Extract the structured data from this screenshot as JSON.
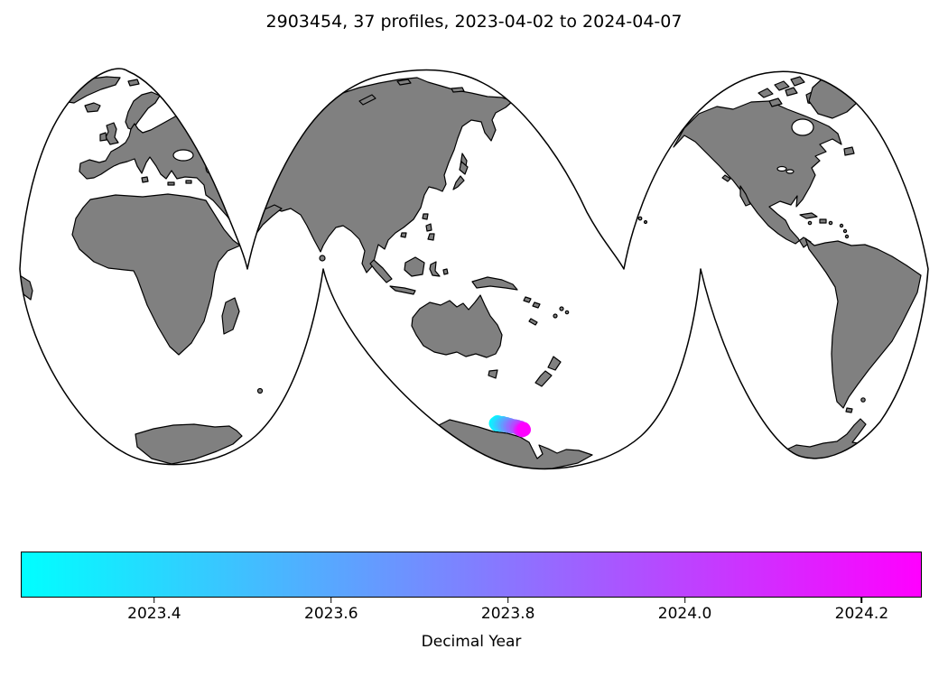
{
  "title": "2903454, 37 profiles, 2023-04-02 to 2024-04-07",
  "theme": {
    "background": "#ffffff",
    "land_color": "#808080",
    "coast_color": "#000000",
    "scatter_cmap_start": "#00ffff",
    "scatter_cmap_end": "#ff00ff"
  },
  "chart_data": {
    "type": "scatter",
    "title": "2903454, 37 profiles, 2023-04-02 to 2024-04-07",
    "float_id": "2903454",
    "profile_count": 37,
    "date_start": "2023-04-02",
    "date_end": "2024-04-07",
    "projection": "interrupted-goode-homolosine-world-map",
    "legend_position": "bottom-colorbar",
    "grid": false,
    "colorbar": {
      "label": "Decimal Year",
      "cmap": "cool",
      "cmap_start_color": "#00ffff",
      "cmap_end_color": "#ff00ff",
      "vmin": 2023.249,
      "vmax": 2024.268,
      "ticks": [
        2023.4,
        2023.6,
        2023.8,
        2024.0,
        2024.2
      ],
      "tick_labels": [
        "2023.4",
        "2023.6",
        "2023.8",
        "2024.0",
        "2024.2"
      ]
    },
    "points": [
      {
        "x": 549.0,
        "y": 469.0,
        "year": 2023.253
      },
      {
        "x": 551.0,
        "y": 467.5,
        "year": 2023.281
      },
      {
        "x": 553.0,
        "y": 469.5,
        "year": 2023.309
      },
      {
        "x": 550.0,
        "y": 470.5,
        "year": 2023.337
      },
      {
        "x": 552.5,
        "y": 468.0,
        "year": 2023.366
      },
      {
        "x": 555.0,
        "y": 469.0,
        "year": 2023.394
      },
      {
        "x": 554.0,
        "y": 471.0,
        "year": 2023.422
      },
      {
        "x": 557.0,
        "y": 468.5,
        "year": 2023.45
      },
      {
        "x": 556.0,
        "y": 470.5,
        "year": 2023.478
      },
      {
        "x": 558.0,
        "y": 469.5,
        "year": 2023.506
      },
      {
        "x": 560.0,
        "y": 470.0,
        "year": 2023.535
      },
      {
        "x": 559.0,
        "y": 471.5,
        "year": 2023.563
      },
      {
        "x": 561.0,
        "y": 469.5,
        "year": 2023.591
      },
      {
        "x": 563.0,
        "y": 470.5,
        "year": 2023.619
      },
      {
        "x": 562.0,
        "y": 472.0,
        "year": 2023.647
      },
      {
        "x": 564.5,
        "y": 470.5,
        "year": 2023.675
      },
      {
        "x": 566.0,
        "y": 471.5,
        "year": 2023.703
      },
      {
        "x": 565.0,
        "y": 472.5,
        "year": 2023.732
      },
      {
        "x": 567.5,
        "y": 471.5,
        "year": 2023.76
      },
      {
        "x": 569.0,
        "y": 472.0,
        "year": 2023.788
      },
      {
        "x": 568.0,
        "y": 473.0,
        "year": 2023.816
      },
      {
        "x": 570.5,
        "y": 472.0,
        "year": 2023.844
      },
      {
        "x": 571.5,
        "y": 473.0,
        "year": 2023.872
      },
      {
        "x": 573.0,
        "y": 472.5,
        "year": 2023.9
      },
      {
        "x": 572.5,
        "y": 474.0,
        "year": 2023.929
      },
      {
        "x": 574.0,
        "y": 473.5,
        "year": 2023.957
      },
      {
        "x": 575.5,
        "y": 474.5,
        "year": 2023.985
      },
      {
        "x": 576.5,
        "y": 473.5,
        "year": 2024.013
      },
      {
        "x": 577.0,
        "y": 475.0,
        "year": 2024.041
      },
      {
        "x": 576.0,
        "y": 476.0,
        "year": 2024.069
      },
      {
        "x": 578.0,
        "y": 474.5,
        "year": 2024.097
      },
      {
        "x": 579.0,
        "y": 475.5,
        "year": 2024.126
      },
      {
        "x": 577.5,
        "y": 476.5,
        "year": 2024.154
      },
      {
        "x": 578.5,
        "y": 477.0,
        "year": 2024.182
      },
      {
        "x": 579.5,
        "y": 476.0,
        "year": 2024.21
      },
      {
        "x": 580.0,
        "y": 475.0,
        "year": 2024.238
      },
      {
        "x": 580.5,
        "y": 476.0,
        "year": 2024.266
      }
    ]
  }
}
